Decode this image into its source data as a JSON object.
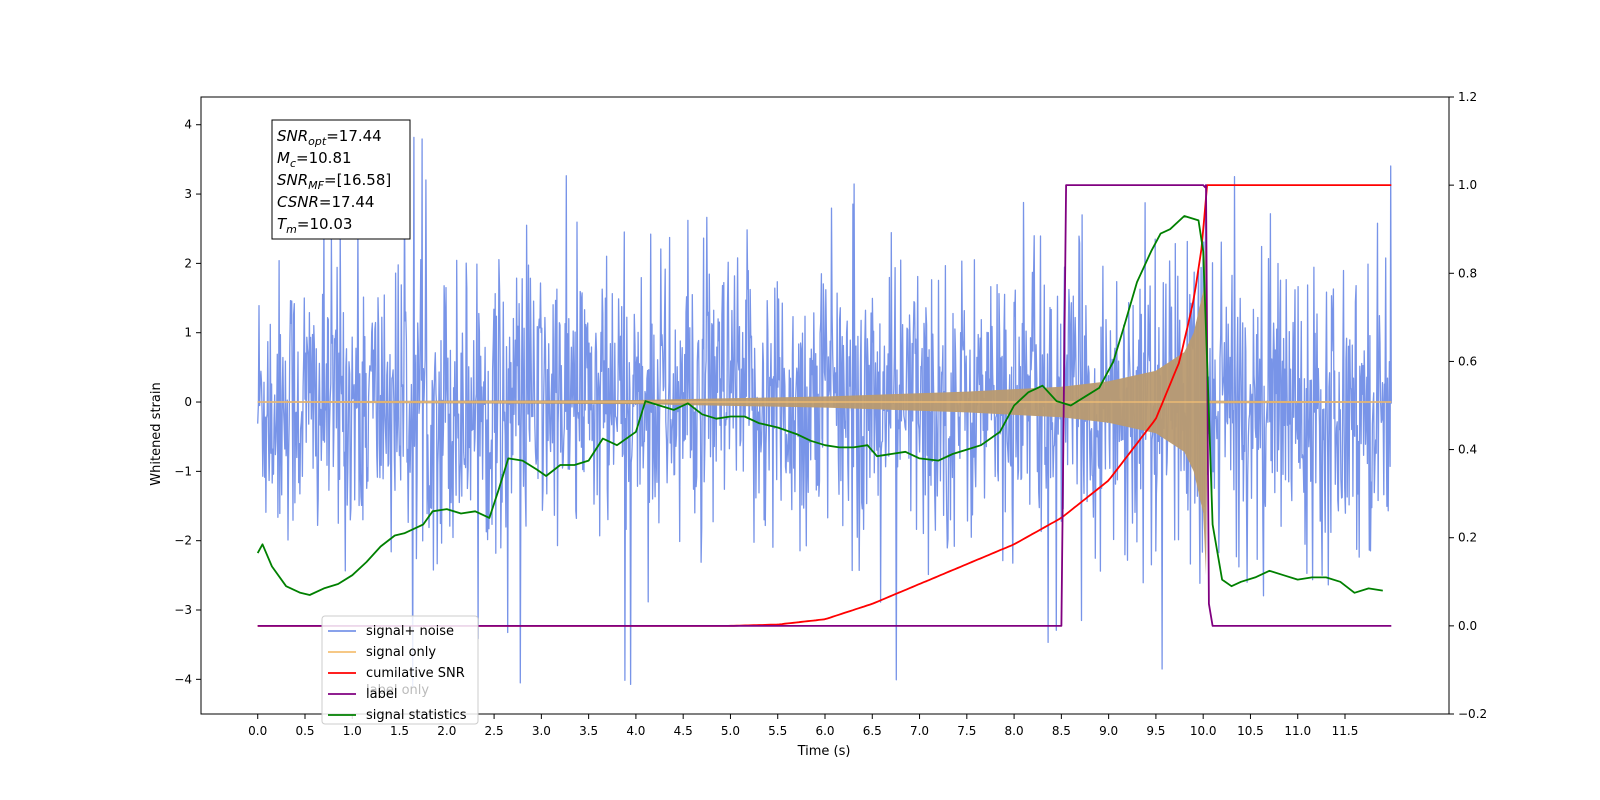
{
  "chart_data": {
    "type": "line",
    "xlabel": "Time (s)",
    "ylabel_left": "Whitened strain",
    "ylabel_right": "",
    "xlim": [
      -0.6,
      12.6
    ],
    "ylim_left": [
      -4.5,
      4.4
    ],
    "ylim_right": [
      -0.2,
      1.2
    ],
    "x_ticks": [
      0.0,
      0.5,
      1.0,
      1.5,
      2.0,
      2.5,
      3.0,
      3.5,
      4.0,
      4.5,
      5.0,
      5.5,
      6.0,
      6.5,
      7.0,
      7.5,
      8.0,
      8.5,
      9.0,
      9.5,
      10.0,
      10.5,
      11.0,
      11.5
    ],
    "x_tick_labels": [
      "0.0",
      "0.5",
      "1.0",
      "1.5",
      "2.0",
      "2.5",
      "3.0",
      "3.5",
      "4.0",
      "4.5",
      "5.0",
      "5.5",
      "6.0",
      "6.5",
      "7.0",
      "7.5",
      "8.0",
      "8.5",
      "9.0",
      "9.5",
      "10.0",
      "10.5",
      "11.0",
      "11.5"
    ],
    "y_left_ticks": [
      4,
      3,
      2,
      1,
      0,
      -1,
      -2,
      -3,
      -4
    ],
    "y_left_tick_labels": [
      "4",
      "3",
      "2",
      "1",
      "0",
      "−1",
      "−2",
      "−3",
      "−4"
    ],
    "y_right_ticks": [
      1.2,
      1.0,
      0.8,
      0.6,
      0.4,
      0.2,
      0.0,
      -0.2
    ],
    "y_right_tick_labels": [
      "1.2",
      "1.0",
      "0.8",
      "0.6",
      "0.4",
      "0.2",
      "0.0",
      "−0.2"
    ],
    "grid": false,
    "legend_position": "lower-left",
    "stats": [
      {
        "base": "SNR",
        "sub": "opt",
        "value": "=17.44"
      },
      {
        "base": "M",
        "sub": "c",
        "value": "=10.81"
      },
      {
        "base": "SNR",
        "sub": "MF",
        "value": "=[16.58]"
      },
      {
        "base": "CSNR",
        "sub": "",
        "value": "=17.44"
      },
      {
        "base": "T",
        "sub": "m",
        "value": "=10.03"
      }
    ],
    "merger_time": 10.03,
    "noise": {
      "x_range": [
        0.0,
        11.99
      ],
      "sigma": 1.0,
      "spike_max": 4.0,
      "spike_min": -4.1
    },
    "series": [
      {
        "name": "signal+ noise",
        "axis": "left",
        "color": "#7894e8"
      },
      {
        "name": "signal only",
        "axis": "left",
        "color": "#f5c074",
        "fill_color": "#b99a70",
        "envelope_x": [
          0.0,
          4.0,
          6.0,
          7.5,
          8.5,
          9.0,
          9.5,
          9.8,
          9.9,
          10.0,
          10.03,
          10.05,
          11.99
        ],
        "envelope_y": [
          0.01,
          0.03,
          0.08,
          0.15,
          0.22,
          0.3,
          0.45,
          0.72,
          1.0,
          1.6,
          2.5,
          0.02,
          0.01
        ]
      },
      {
        "name": "cumilative SNR",
        "axis": "right",
        "color": "#ff0000",
        "x": [
          0.0,
          5.0,
          5.5,
          6.0,
          6.5,
          7.0,
          7.5,
          8.0,
          8.5,
          9.0,
          9.5,
          9.75,
          9.9,
          10.0,
          10.03,
          11.99
        ],
        "y": [
          0.0,
          0.0,
          0.003,
          0.015,
          0.05,
          0.095,
          0.14,
          0.185,
          0.245,
          0.33,
          0.47,
          0.6,
          0.74,
          0.88,
          1.0,
          1.0
        ]
      },
      {
        "name": "label",
        "axis": "right",
        "color": "#800080",
        "x": [
          0.0,
          8.5,
          8.55,
          10.0,
          10.02,
          10.03,
          10.06,
          10.1,
          11.99
        ],
        "y": [
          0.0,
          0.0,
          1.0,
          1.0,
          0.995,
          1.0,
          0.05,
          0.0,
          0.0
        ]
      },
      {
        "name": "label only",
        "axis": "right",
        "color": "#bbbbbb",
        "hidden_behind_legend": true
      },
      {
        "name": "signal statistics",
        "axis": "right",
        "color": "#008000",
        "x": [
          0.0,
          0.05,
          0.15,
          0.3,
          0.45,
          0.55,
          0.7,
          0.85,
          1.0,
          1.15,
          1.3,
          1.45,
          1.55,
          1.7,
          1.75,
          1.85,
          2.0,
          2.15,
          2.3,
          2.45,
          2.55,
          2.65,
          2.8,
          2.95,
          3.05,
          3.2,
          3.35,
          3.5,
          3.65,
          3.8,
          4.0,
          4.1,
          4.25,
          4.4,
          4.55,
          4.7,
          4.85,
          5.0,
          5.15,
          5.3,
          5.5,
          5.7,
          5.85,
          6.0,
          6.15,
          6.3,
          6.45,
          6.55,
          6.7,
          6.85,
          7.0,
          7.2,
          7.35,
          7.5,
          7.65,
          7.85,
          8.0,
          8.15,
          8.3,
          8.45,
          8.6,
          8.75,
          8.9,
          9.05,
          9.15,
          9.3,
          9.45,
          9.55,
          9.65,
          9.8,
          9.95,
          10.0,
          10.05,
          10.1,
          10.2,
          10.3,
          10.4,
          10.55,
          10.7,
          10.85,
          11.0,
          11.15,
          11.3,
          11.45,
          11.6,
          11.75,
          11.9
        ],
        "y": [
          0.165,
          0.185,
          0.135,
          0.09,
          0.075,
          0.07,
          0.085,
          0.095,
          0.115,
          0.145,
          0.18,
          0.205,
          0.21,
          0.225,
          0.23,
          0.26,
          0.265,
          0.255,
          0.26,
          0.245,
          0.31,
          0.38,
          0.375,
          0.355,
          0.34,
          0.365,
          0.365,
          0.375,
          0.425,
          0.41,
          0.44,
          0.51,
          0.5,
          0.49,
          0.505,
          0.48,
          0.47,
          0.475,
          0.475,
          0.46,
          0.45,
          0.435,
          0.42,
          0.41,
          0.405,
          0.405,
          0.41,
          0.385,
          0.39,
          0.395,
          0.38,
          0.375,
          0.39,
          0.4,
          0.41,
          0.44,
          0.5,
          0.53,
          0.545,
          0.51,
          0.5,
          0.52,
          0.54,
          0.6,
          0.67,
          0.78,
          0.85,
          0.89,
          0.9,
          0.93,
          0.92,
          0.85,
          0.55,
          0.23,
          0.105,
          0.09,
          0.1,
          0.11,
          0.125,
          0.115,
          0.105,
          0.11,
          0.11,
          0.1,
          0.075,
          0.085,
          0.08
        ]
      }
    ],
    "legend_entries": [
      {
        "name": "signal+ noise",
        "color": "#7894e8"
      },
      {
        "name": "signal only",
        "color": "#f5c074"
      },
      {
        "name": "cumilative SNR",
        "color": "#ff0000"
      },
      {
        "name": "label",
        "color": "#800080"
      },
      {
        "name": "signal statistics",
        "color": "#008000"
      }
    ]
  }
}
